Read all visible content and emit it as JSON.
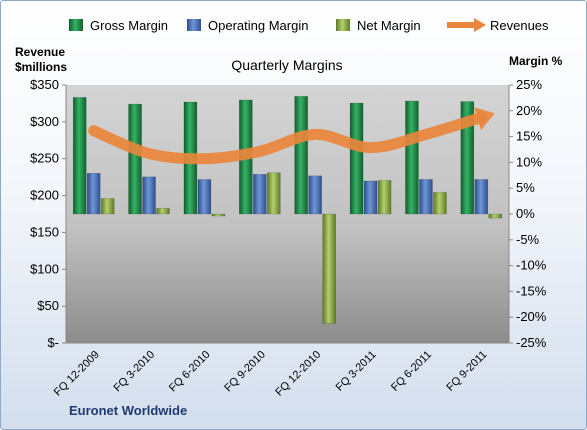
{
  "chart_data": {
    "type": "bar",
    "title": "Quarterly Margins",
    "categories": [
      "FQ 12-2009",
      "FQ 3-2010",
      "FQ 6-2010",
      "FQ 9-2010",
      "FQ 12-2010",
      "FQ 3-2011",
      "FQ 6-2011",
      "FQ 9-2011"
    ],
    "series": [
      {
        "name": "Gross Margin",
        "axis": "right",
        "values": [
          22.6,
          21.3,
          21.7,
          22.1,
          22.8,
          21.5,
          21.9,
          21.8
        ]
      },
      {
        "name": "Operating Margin",
        "axis": "right",
        "values": [
          7.9,
          7.2,
          6.7,
          7.7,
          7.4,
          6.4,
          6.7,
          6.7
        ]
      },
      {
        "name": "Net Margin",
        "axis": "right",
        "values": [
          3.0,
          1.1,
          -0.4,
          8.0,
          -21.2,
          6.5,
          4.2,
          -0.8
        ]
      },
      {
        "name": "Revenues",
        "type": "line",
        "axis": "left",
        "values": [
          288,
          257,
          250,
          260,
          283,
          265,
          283,
          306
        ]
      }
    ],
    "left_axis": {
      "label_line1": "Revenue",
      "label_line2": "$millions",
      "min": 0,
      "max": 350,
      "step": 50,
      "tick_labels": [
        "$-",
        "$50",
        "$100",
        "$150",
        "$200",
        "$250",
        "$300",
        "$350"
      ]
    },
    "right_axis": {
      "label": "Margin %",
      "min": -25,
      "max": 25,
      "step": 5,
      "tick_labels": [
        "-25%",
        "-20%",
        "-15%",
        "-10%",
        "-5%",
        "0%",
        "5%",
        "10%",
        "15%",
        "20%",
        "25%"
      ]
    },
    "legend_position": "top",
    "grid": false,
    "footer": "Euronet Worldwide",
    "colors": {
      "gross": "#1e8a46",
      "operating": "#4a72b8",
      "net": "#8fae49",
      "revenues": "#e9853c"
    }
  }
}
